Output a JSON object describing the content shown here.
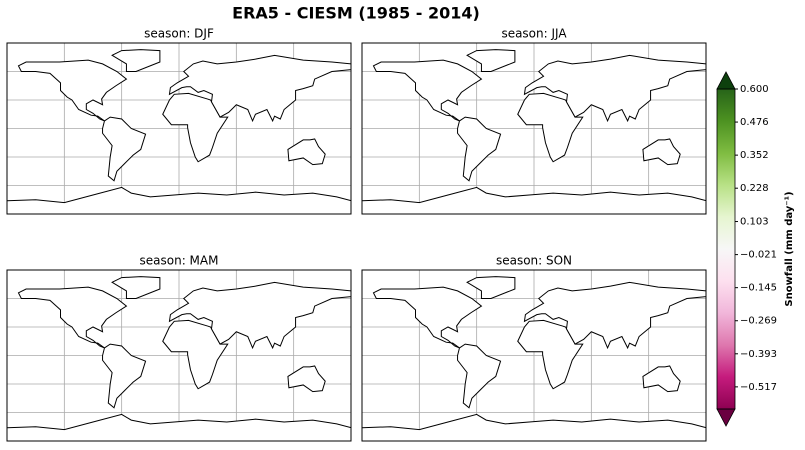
{
  "title": "ERA5 - CIESM (1985 - 2014)",
  "panels": [
    {
      "title": "season: DJF"
    },
    {
      "title": "season: JJA"
    },
    {
      "title": "season: MAM"
    },
    {
      "title": "season: SON"
    }
  ],
  "colorbar": {
    "label": "Snowfall (mm day⁻¹)",
    "colormap": "PiYG",
    "extend": "both",
    "lim": [
      -0.6,
      0.6
    ],
    "colors": [
      "#8e0152",
      "#c51b7d",
      "#de77ae",
      "#f1b6da",
      "#fde0ef",
      "#f7f7f7",
      "#e6f5d0",
      "#b8e186",
      "#7fbc41",
      "#4d9221",
      "#276419"
    ],
    "under_color": "#6a0040",
    "over_color": "#0d400d",
    "ticks": [
      {
        "value": 0.6,
        "label": "0.600"
      },
      {
        "value": 0.476,
        "label": "0.476"
      },
      {
        "value": 0.352,
        "label": "0.352"
      },
      {
        "value": 0.228,
        "label": "0.228"
      },
      {
        "value": 0.103,
        "label": "0.103"
      },
      {
        "value": -0.021,
        "label": "−0.021"
      },
      {
        "value": -0.145,
        "label": "−0.145"
      },
      {
        "value": -0.269,
        "label": "−0.269"
      },
      {
        "value": -0.393,
        "label": "−0.393"
      },
      {
        "value": -0.517,
        "label": "−0.517"
      }
    ]
  }
}
